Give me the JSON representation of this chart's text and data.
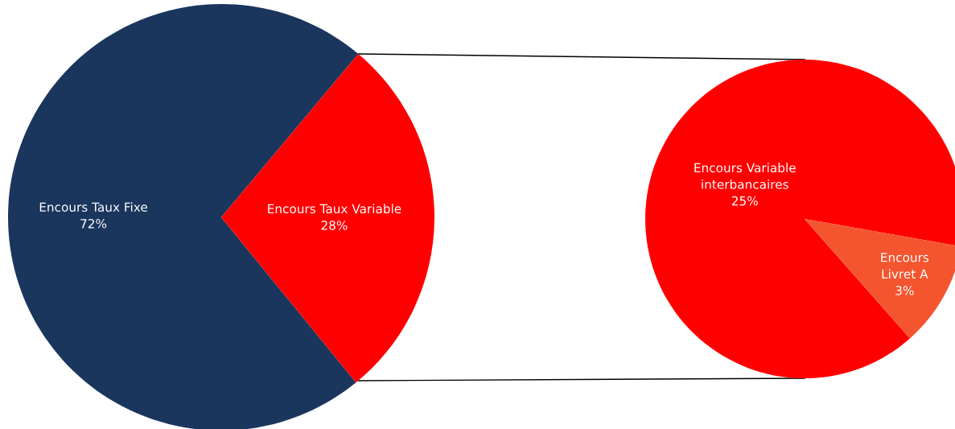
{
  "chart_data": [
    {
      "type": "pie",
      "categories": [
        "Encours Taux Fixe",
        "Encours Taux Variable"
      ],
      "values": [
        72,
        28
      ],
      "value_labels": [
        "72%",
        "28%"
      ],
      "colors": [
        "#1b365d",
        "#ff0000"
      ]
    },
    {
      "type": "pie",
      "categories": [
        "Encours Variable interbancaires",
        "Encours Livret A"
      ],
      "values": [
        25,
        3
      ],
      "value_labels": [
        "25%",
        "3%"
      ],
      "colors": [
        "#ff0000",
        "#f4552f"
      ]
    }
  ]
}
